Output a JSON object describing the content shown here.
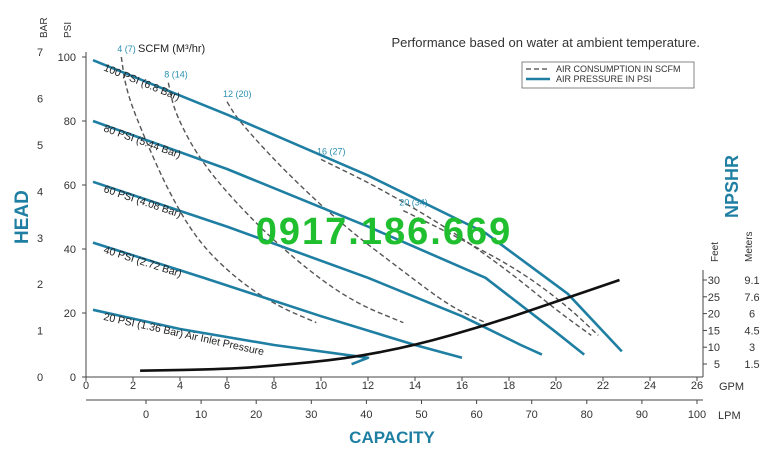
{
  "chart_data": {
    "type": "line",
    "title": "Performance based on water at ambient temperature.",
    "xlabel": "CAPACITY",
    "ylabel": "HEAD",
    "right_label": "NPSHR",
    "y_units": {
      "bar": "BAR",
      "psi": "PSI"
    },
    "x_units": {
      "gpm": "GPM",
      "lpm": "LPM"
    },
    "npshr_units": {
      "feet": "Feet",
      "meters": "Meters"
    },
    "scfm_label": "SCFM (M³/hr)",
    "xlim_gpm": [
      0,
      26
    ],
    "ylim_psi": [
      0,
      100
    ],
    "x_ticks_gpm": [
      "0",
      "2",
      "4",
      "6",
      "8",
      "10",
      "12",
      "14",
      "16",
      "18",
      "20",
      "22",
      "24",
      "26"
    ],
    "x_ticks_lpm": [
      "0",
      "10",
      "20",
      "30",
      "40",
      "50",
      "60",
      "70",
      "80",
      "90",
      "100"
    ],
    "y_ticks_psi": [
      "0",
      "20",
      "40",
      "60",
      "80",
      "100"
    ],
    "y_ticks_bar": [
      "0",
      "1",
      "2",
      "3",
      "4",
      "5",
      "6",
      "7"
    ],
    "npshr_ticks_feet": [
      "30",
      "25",
      "20",
      "15",
      "10",
      "5"
    ],
    "npshr_ticks_meters": [
      "9.1",
      "7.6",
      "6",
      "4.5",
      "3",
      "1.5"
    ],
    "legend": [
      {
        "label": "AIR CONSUMPTION IN SCFM",
        "style": "dashed",
        "color": "#444444"
      },
      {
        "label": "AIR PRESSURE IN PSI",
        "style": "solid",
        "color": "#1f7fa3"
      }
    ],
    "colors": {
      "pressure": "#1f7fa3",
      "scfm": "#555555",
      "npshr": "#111111",
      "accent": "#2a8fb0",
      "watermark": "#1fbf2f"
    },
    "series": [
      {
        "name": "100 PSI (6.8 Bar)",
        "x": [
          0.3,
          6,
          12,
          17,
          20.5,
          22.8
        ],
        "y": [
          99,
          82,
          63,
          45,
          26,
          8
        ]
      },
      {
        "name": "80 PSI (5.44 Bar)",
        "x": [
          0.3,
          6,
          12,
          17,
          20,
          21.2
        ],
        "y": [
          80,
          65,
          47,
          31,
          14,
          7
        ]
      },
      {
        "name": "60 PSI (4.08 Bar)",
        "x": [
          0.3,
          6,
          12,
          16,
          18.5,
          19.4
        ],
        "y": [
          61,
          47,
          31,
          19,
          10,
          7
        ]
      },
      {
        "name": "40 PSI (2.72 Bar)",
        "x": [
          0.3,
          5,
          10,
          14,
          16
        ],
        "y": [
          42,
          31,
          19,
          10,
          6
        ]
      },
      {
        "name": "20 PSI (1.36 Bar) Air Inlet Pressure",
        "x": [
          0.3,
          4,
          8,
          12,
          11.3
        ],
        "y": [
          21,
          15,
          10,
          6,
          4
        ]
      }
    ],
    "scfm_curves": [
      {
        "label": "4 (7)",
        "x": [
          1.5,
          1.7,
          2.3,
          3.5,
          4.8,
          6.5,
          8.2,
          9.8
        ],
        "y": [
          100,
          90,
          78,
          58,
          42,
          30,
          22,
          17
        ]
      },
      {
        "label": "8 (14)",
        "x": [
          3.5,
          3.8,
          5.0,
          7.2,
          9.5,
          11.5,
          13.5
        ],
        "y": [
          92,
          82,
          66,
          48,
          33,
          23,
          17
        ]
      },
      {
        "label": "12 (20)",
        "x": [
          6.0,
          6.5,
          8.5,
          11.0,
          13.5,
          15.5,
          17.0
        ],
        "y": [
          86,
          80,
          64,
          47,
          33,
          22,
          17
        ]
      },
      {
        "label": "16 (27)",
        "x": [
          10.0,
          12.5,
          15.5,
          18.0,
          20.0,
          21.5
        ],
        "y": [
          68,
          59,
          46,
          33,
          21,
          13
        ]
      },
      {
        "label": "20 (34)",
        "x": [
          13.5,
          16.0,
          18.5,
          20.5,
          21.8
        ],
        "y": [
          52,
          43,
          33,
          22,
          13
        ]
      }
    ],
    "npshr_curve": {
      "name": "NPSHR",
      "x": [
        2.3,
        6,
        8,
        11,
        14,
        17,
        20,
        22.7
      ],
      "y_feet": [
        3,
        3.5,
        4.5,
        6.5,
        10.5,
        16.5,
        23.5,
        30
      ]
    },
    "watermark": "0917.186.669"
  }
}
